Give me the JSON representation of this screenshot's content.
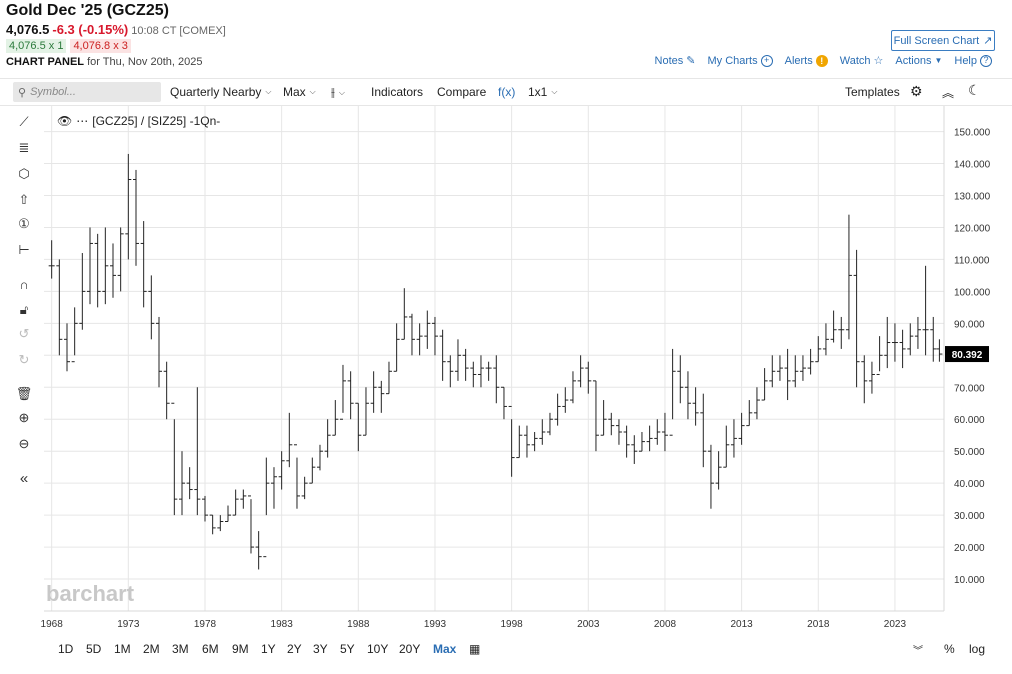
{
  "header": {
    "title": "Gold Dec '25 (GCZ25)",
    "last": "4,076.5",
    "change": "-6.3 (-0.15%)",
    "time": "10:08 CT [COMEX]",
    "bid": "4,076.5 x 1",
    "ask": "4,076.8 x 3",
    "panel_label": "CHART PANEL",
    "panel_date": "for Thu, Nov 20th, 2025",
    "fullscreen_label": "Full Screen Chart",
    "links": {
      "notes": "Notes",
      "mycharts": "My Charts",
      "alerts": "Alerts",
      "watch": "Watch",
      "actions": "Actions",
      "help": "Help"
    }
  },
  "toolbar": {
    "symbol_placeholder": "Symbol...",
    "quarterly": "Quarterly Nearby",
    "max": "Max",
    "indicators": "Indicators",
    "compare": "Compare",
    "fx": "f(x)",
    "layout": "1x1",
    "templates": "Templates"
  },
  "legend": {
    "text": "[GCZ25] / [SIZ25] -1Qn-"
  },
  "watermark": "barchart",
  "last_value_label": "80.392",
  "colors": {
    "accent": "#2a6db3",
    "negative": "#d8182c",
    "bar": "#222222",
    "grid": "#e6e6e6",
    "last_tag": "#000000"
  },
  "chart_data": {
    "type": "ohlc",
    "y_ticks": [
      "10.000",
      "20.000",
      "30.000",
      "40.000",
      "50.000",
      "60.000",
      "70.000",
      "80.000",
      "90.000",
      "100.000",
      "110.000",
      "120.000",
      "130.000",
      "140.000",
      "150.000"
    ],
    "x_ticks": [
      "1968",
      "1973",
      "1978",
      "1983",
      "1988",
      "1993",
      "1998",
      "2003",
      "2008",
      "2013",
      "2018",
      "2023"
    ],
    "ylim": [
      0,
      158
    ],
    "xlim": [
      1967.5,
      2026.2
    ],
    "last": 80.392,
    "bars": [
      {
        "x": 1968.0,
        "h": 116,
        "l": 104,
        "c": 108
      },
      {
        "x": 1968.5,
        "h": 110,
        "l": 80,
        "c": 85
      },
      {
        "x": 1969.0,
        "h": 90,
        "l": 75,
        "c": 78
      },
      {
        "x": 1969.5,
        "h": 95,
        "l": 80,
        "c": 90
      },
      {
        "x": 1970.0,
        "h": 112,
        "l": 88,
        "c": 100
      },
      {
        "x": 1970.5,
        "h": 120,
        "l": 96,
        "c": 115
      },
      {
        "x": 1971.0,
        "h": 118,
        "l": 95,
        "c": 100
      },
      {
        "x": 1971.5,
        "h": 120,
        "l": 96,
        "c": 108
      },
      {
        "x": 1972.0,
        "h": 115,
        "l": 98,
        "c": 105
      },
      {
        "x": 1972.5,
        "h": 120,
        "l": 100,
        "c": 118
      },
      {
        "x": 1973.0,
        "h": 143,
        "l": 110,
        "c": 135
      },
      {
        "x": 1973.5,
        "h": 138,
        "l": 108,
        "c": 115
      },
      {
        "x": 1974.0,
        "h": 122,
        "l": 95,
        "c": 100
      },
      {
        "x": 1974.5,
        "h": 105,
        "l": 85,
        "c": 90
      },
      {
        "x": 1975.0,
        "h": 92,
        "l": 70,
        "c": 75
      },
      {
        "x": 1975.5,
        "h": 78,
        "l": 60,
        "c": 65
      },
      {
        "x": 1976.0,
        "h": 60,
        "l": 30,
        "c": 35
      },
      {
        "x": 1976.5,
        "h": 50,
        "l": 30,
        "c": 40
      },
      {
        "x": 1977.0,
        "h": 45,
        "l": 35,
        "c": 38
      },
      {
        "x": 1977.5,
        "h": 70,
        "l": 30,
        "c": 35
      },
      {
        "x": 1978.0,
        "h": 36,
        "l": 28,
        "c": 30
      },
      {
        "x": 1978.5,
        "h": 30,
        "l": 24,
        "c": 26
      },
      {
        "x": 1979.0,
        "h": 30,
        "l": 25,
        "c": 28
      },
      {
        "x": 1979.5,
        "h": 33,
        "l": 28,
        "c": 30
      },
      {
        "x": 1980.0,
        "h": 38,
        "l": 30,
        "c": 35
      },
      {
        "x": 1980.5,
        "h": 38,
        "l": 32,
        "c": 36
      },
      {
        "x": 1981.0,
        "h": 35,
        "l": 18,
        "c": 20
      },
      {
        "x": 1981.5,
        "h": 25,
        "l": 13,
        "c": 17
      },
      {
        "x": 1982.0,
        "h": 48,
        "l": 30,
        "c": 40
      },
      {
        "x": 1982.5,
        "h": 45,
        "l": 32,
        "c": 42
      },
      {
        "x": 1983.0,
        "h": 50,
        "l": 38,
        "c": 47
      },
      {
        "x": 1983.5,
        "h": 62,
        "l": 45,
        "c": 52
      },
      {
        "x": 1984.0,
        "h": 48,
        "l": 32,
        "c": 36
      },
      {
        "x": 1984.5,
        "h": 42,
        "l": 35,
        "c": 40
      },
      {
        "x": 1985.0,
        "h": 48,
        "l": 40,
        "c": 45
      },
      {
        "x": 1985.5,
        "h": 52,
        "l": 44,
        "c": 50
      },
      {
        "x": 1986.0,
        "h": 60,
        "l": 48,
        "c": 55
      },
      {
        "x": 1986.5,
        "h": 66,
        "l": 55,
        "c": 60
      },
      {
        "x": 1987.0,
        "h": 77,
        "l": 62,
        "c": 72
      },
      {
        "x": 1987.5,
        "h": 75,
        "l": 60,
        "c": 65
      },
      {
        "x": 1988.0,
        "h": 65,
        "l": 50,
        "c": 55
      },
      {
        "x": 1988.5,
        "h": 70,
        "l": 55,
        "c": 65
      },
      {
        "x": 1989.0,
        "h": 75,
        "l": 62,
        "c": 70
      },
      {
        "x": 1989.5,
        "h": 72,
        "l": 62,
        "c": 68
      },
      {
        "x": 1990.0,
        "h": 78,
        "l": 68,
        "c": 75
      },
      {
        "x": 1990.5,
        "h": 90,
        "l": 75,
        "c": 85
      },
      {
        "x": 1991.0,
        "h": 101,
        "l": 85,
        "c": 92
      },
      {
        "x": 1991.5,
        "h": 93,
        "l": 80,
        "c": 85
      },
      {
        "x": 1992.0,
        "h": 90,
        "l": 80,
        "c": 86
      },
      {
        "x": 1992.5,
        "h": 94,
        "l": 82,
        "c": 90
      },
      {
        "x": 1993.0,
        "h": 92,
        "l": 80,
        "c": 86
      },
      {
        "x": 1993.5,
        "h": 88,
        "l": 72,
        "c": 78
      },
      {
        "x": 1994.0,
        "h": 80,
        "l": 70,
        "c": 75
      },
      {
        "x": 1994.5,
        "h": 85,
        "l": 72,
        "c": 80
      },
      {
        "x": 1995.0,
        "h": 82,
        "l": 72,
        "c": 76
      },
      {
        "x": 1995.5,
        "h": 78,
        "l": 70,
        "c": 74
      },
      {
        "x": 1996.0,
        "h": 80,
        "l": 70,
        "c": 76
      },
      {
        "x": 1996.5,
        "h": 78,
        "l": 72,
        "c": 76
      },
      {
        "x": 1997.0,
        "h": 80,
        "l": 65,
        "c": 70
      },
      {
        "x": 1997.5,
        "h": 70,
        "l": 60,
        "c": 64
      },
      {
        "x": 1998.0,
        "h": 60,
        "l": 42,
        "c": 48
      },
      {
        "x": 1998.5,
        "h": 58,
        "l": 48,
        "c": 55
      },
      {
        "x": 1999.0,
        "h": 58,
        "l": 48,
        "c": 52
      },
      {
        "x": 1999.5,
        "h": 56,
        "l": 50,
        "c": 54
      },
      {
        "x": 2000.0,
        "h": 60,
        "l": 52,
        "c": 56
      },
      {
        "x": 2000.5,
        "h": 62,
        "l": 55,
        "c": 60
      },
      {
        "x": 2001.0,
        "h": 68,
        "l": 58,
        "c": 64
      },
      {
        "x": 2001.5,
        "h": 70,
        "l": 62,
        "c": 66
      },
      {
        "x": 2002.0,
        "h": 75,
        "l": 65,
        "c": 72
      },
      {
        "x": 2002.5,
        "h": 80,
        "l": 70,
        "c": 76
      },
      {
        "x": 2003.0,
        "h": 78,
        "l": 68,
        "c": 72
      },
      {
        "x": 2003.5,
        "h": 72,
        "l": 50,
        "c": 55
      },
      {
        "x": 2004.0,
        "h": 66,
        "l": 55,
        "c": 60
      },
      {
        "x": 2004.5,
        "h": 62,
        "l": 55,
        "c": 58
      },
      {
        "x": 2005.0,
        "h": 60,
        "l": 52,
        "c": 56
      },
      {
        "x": 2005.5,
        "h": 58,
        "l": 48,
        "c": 52
      },
      {
        "x": 2006.0,
        "h": 55,
        "l": 46,
        "c": 50
      },
      {
        "x": 2006.5,
        "h": 56,
        "l": 50,
        "c": 53
      },
      {
        "x": 2007.0,
        "h": 58,
        "l": 50,
        "c": 54
      },
      {
        "x": 2007.5,
        "h": 60,
        "l": 52,
        "c": 56
      },
      {
        "x": 2008.0,
        "h": 62,
        "l": 50,
        "c": 55
      },
      {
        "x": 2008.5,
        "h": 82,
        "l": 60,
        "c": 75
      },
      {
        "x": 2009.0,
        "h": 80,
        "l": 65,
        "c": 70
      },
      {
        "x": 2009.5,
        "h": 75,
        "l": 60,
        "c": 65
      },
      {
        "x": 2010.0,
        "h": 70,
        "l": 58,
        "c": 62
      },
      {
        "x": 2010.5,
        "h": 68,
        "l": 45,
        "c": 50
      },
      {
        "x": 2011.0,
        "h": 52,
        "l": 32,
        "c": 40
      },
      {
        "x": 2011.5,
        "h": 50,
        "l": 38,
        "c": 45
      },
      {
        "x": 2012.0,
        "h": 58,
        "l": 45,
        "c": 52
      },
      {
        "x": 2012.5,
        "h": 60,
        "l": 48,
        "c": 54
      },
      {
        "x": 2013.0,
        "h": 62,
        "l": 52,
        "c": 58
      },
      {
        "x": 2013.5,
        "h": 66,
        "l": 58,
        "c": 62
      },
      {
        "x": 2014.0,
        "h": 70,
        "l": 60,
        "c": 66
      },
      {
        "x": 2014.5,
        "h": 76,
        "l": 66,
        "c": 72
      },
      {
        "x": 2015.0,
        "h": 80,
        "l": 70,
        "c": 75
      },
      {
        "x": 2015.5,
        "h": 80,
        "l": 72,
        "c": 76
      },
      {
        "x": 2016.0,
        "h": 82,
        "l": 66,
        "c": 72
      },
      {
        "x": 2016.5,
        "h": 80,
        "l": 70,
        "c": 75
      },
      {
        "x": 2017.0,
        "h": 80,
        "l": 72,
        "c": 76
      },
      {
        "x": 2017.5,
        "h": 82,
        "l": 74,
        "c": 78
      },
      {
        "x": 2018.0,
        "h": 86,
        "l": 78,
        "c": 82
      },
      {
        "x": 2018.5,
        "h": 90,
        "l": 80,
        "c": 85
      },
      {
        "x": 2019.0,
        "h": 94,
        "l": 84,
        "c": 88
      },
      {
        "x": 2019.5,
        "h": 92,
        "l": 82,
        "c": 88
      },
      {
        "x": 2020.0,
        "h": 124,
        "l": 85,
        "c": 105
      },
      {
        "x": 2020.5,
        "h": 113,
        "l": 70,
        "c": 78
      },
      {
        "x": 2021.0,
        "h": 80,
        "l": 65,
        "c": 72
      },
      {
        "x": 2021.5,
        "h": 78,
        "l": 68,
        "c": 74
      },
      {
        "x": 2022.0,
        "h": 86,
        "l": 75,
        "c": 80
      },
      {
        "x": 2022.5,
        "h": 92,
        "l": 76,
        "c": 84
      },
      {
        "x": 2023.0,
        "h": 90,
        "l": 78,
        "c": 84
      },
      {
        "x": 2023.5,
        "h": 88,
        "l": 76,
        "c": 82
      },
      {
        "x": 2024.0,
        "h": 90,
        "l": 80,
        "c": 86
      },
      {
        "x": 2024.5,
        "h": 92,
        "l": 82,
        "c": 88
      },
      {
        "x": 2025.0,
        "h": 108,
        "l": 80,
        "c": 88
      },
      {
        "x": 2025.5,
        "h": 92,
        "l": 78,
        "c": 82
      },
      {
        "x": 2025.9,
        "h": 85,
        "l": 78,
        "c": 80.392
      }
    ]
  },
  "bottombar": {
    "ranges": [
      "1D",
      "5D",
      "1M",
      "2M",
      "3M",
      "6M",
      "9M",
      "1Y",
      "2Y",
      "3Y",
      "5Y",
      "10Y",
      "20Y",
      "Max"
    ],
    "active": "Max",
    "pct": "%",
    "log": "log"
  }
}
